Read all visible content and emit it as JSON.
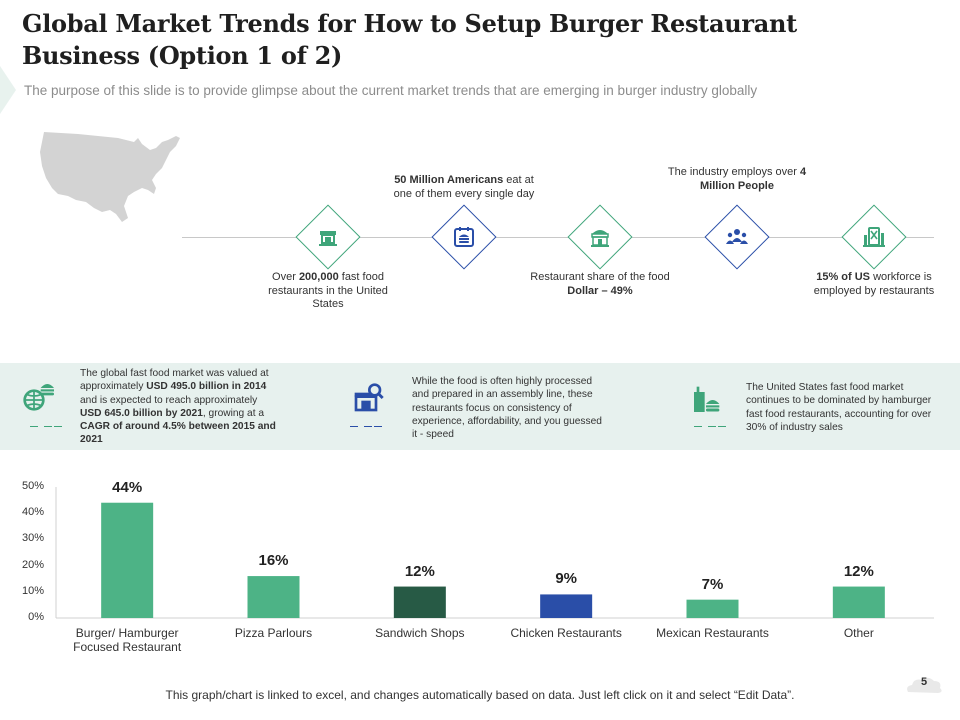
{
  "header": {
    "title": "Global Market Trends for How to Setup Burger Restaurant Business (Option 1 of 2)",
    "subtitle": "The purpose of this slide is to provide glimpse about the current market trends that are emerging in burger industry globally"
  },
  "timeline": {
    "items": [
      {
        "icon": "food-store-icon",
        "color": "#3fa57a",
        "position": "below",
        "parts": [
          {
            "t": "Over ",
            "b": false
          },
          {
            "t": "200,000",
            "b": true
          },
          {
            "t": " fast food restaurants in the United States",
            "b": false
          }
        ]
      },
      {
        "icon": "burger-calendar-icon",
        "color": "#2a4ea8",
        "position": "above",
        "parts": [
          {
            "t": "50 Million Americans",
            "b": true
          },
          {
            "t": " eat at one of them every single day",
            "b": false
          }
        ]
      },
      {
        "icon": "restaurant-building-icon",
        "color": "#3fa57a",
        "position": "below",
        "parts": [
          {
            "t": "Restaurant share of the food ",
            "b": false
          },
          {
            "t": "Dollar – 49%",
            "b": true
          }
        ]
      },
      {
        "icon": "people-group-icon",
        "color": "#2a4ea8",
        "position": "above",
        "parts": [
          {
            "t": "The industry employs over ",
            "b": false
          },
          {
            "t": "4 Million People",
            "b": true
          }
        ]
      },
      {
        "icon": "restaurant-sign-icon",
        "color": "#3fa57a",
        "position": "below",
        "parts": [
          {
            "t": "15% of US",
            "b": true
          },
          {
            "t": " workforce is employed by restaurants",
            "b": false
          }
        ]
      }
    ]
  },
  "band": {
    "items": [
      {
        "icon": "globe-burger-icon",
        "color": "#3fa57a",
        "parts": [
          {
            "t": "The global fast food market was valued at approximately ",
            "b": false
          },
          {
            "t": "USD 495.0 billion in 2014",
            "b": true
          },
          {
            "t": " and is expected to reach approximately ",
            "b": false
          },
          {
            "t": "USD 645.0 billion by 2021",
            "b": true
          },
          {
            "t": ", growing at a ",
            "b": false
          },
          {
            "t": "CAGR of around 4.5% between 2015 and 2021",
            "b": true
          }
        ]
      },
      {
        "icon": "shop-search-icon",
        "color": "#2a4ea8",
        "parts": [
          {
            "t": "While the food is often highly processed and prepared in an assembly line, these restaurants focus on consistency of experience, affordability, and you guessed it - speed",
            "b": false
          }
        ]
      },
      {
        "icon": "burger-drink-icon",
        "color": "#3fa57a",
        "parts": [
          {
            "t": "The United States fast food market continues to be dominated by hamburger fast food restaurants, accounting for over 30% of industry sales",
            "b": false
          }
        ]
      }
    ]
  },
  "chart_data": {
    "type": "bar",
    "categories": [
      "Burger/ Hamburger Focused Restaurant",
      "Pizza Parlours",
      "Sandwich Shops",
      "Chicken Restaurants",
      "Mexican Restaurants",
      "Other"
    ],
    "values": [
      44,
      16,
      12,
      9,
      7,
      12
    ],
    "value_labels": [
      "44%",
      "16%",
      "12%",
      "9%",
      "7%",
      "12%"
    ],
    "colors": [
      "#4db386",
      "#4db386",
      "#275a45",
      "#2a4ea8",
      "#4db386",
      "#4db386"
    ],
    "yticks": [
      "0%",
      "10%",
      "20%",
      "30%",
      "40%",
      "50%"
    ],
    "ylim": [
      0,
      50
    ],
    "grid": false
  },
  "footer": {
    "note": "This graph/chart is linked to excel, and changes automatically based on data.  Just left click on it and select “Edit Data”.",
    "page_number": "5"
  }
}
